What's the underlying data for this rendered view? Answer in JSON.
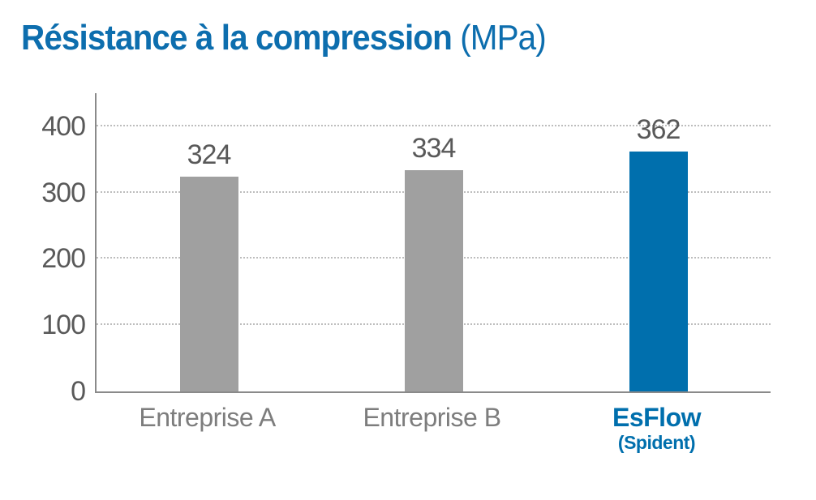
{
  "title": {
    "bold": "Résistance à la compression",
    "suffix": " (MPa)",
    "color": "#0d6eae"
  },
  "chart_data": {
    "type": "bar",
    "title": "Résistance à la compression (MPa)",
    "categories": [
      "Entreprise A",
      "Entreprise B",
      "EsFlow (Spident)"
    ],
    "values": [
      324,
      334,
      362
    ],
    "xlabel": "",
    "ylabel": "",
    "ylim": [
      0,
      450
    ],
    "yticks": [
      0,
      100,
      200,
      300,
      400
    ],
    "grid": "horizontal-dotted",
    "legend": "none",
    "bar_colors": [
      "#a0a0a0",
      "#a0a0a0",
      "#006fad"
    ],
    "value_label_color": "#595959",
    "tick_label_color": "#595959",
    "axis_color": "#8a8a8a",
    "gridline_color": "#bdbdbd",
    "x_labels": [
      {
        "label": "Entreprise A",
        "sublabel": "",
        "color": "#7d7d7d",
        "bold": false
      },
      {
        "label": "Entreprise B",
        "sublabel": "",
        "color": "#7d7d7d",
        "bold": false
      },
      {
        "label": "EsFlow",
        "sublabel": "(Spident)",
        "color": "#006fad",
        "bold": true
      }
    ]
  }
}
